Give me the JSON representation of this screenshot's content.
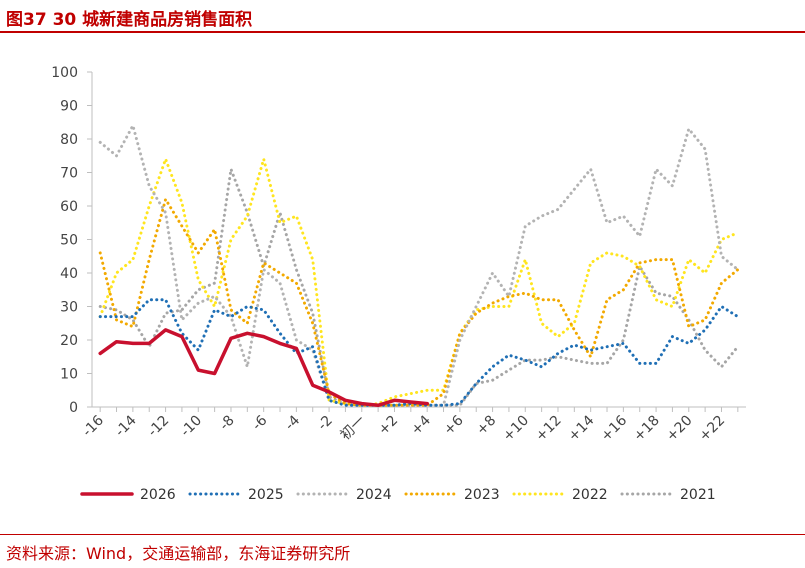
{
  "header": {
    "title": "图37  30 城新建商品房销售面积"
  },
  "footer": {
    "source": "资料来源：Wind，交通运输部，东海证券研究所"
  },
  "colors": {
    "2026": "#c8102e",
    "2025": "#1f6fb5",
    "2024": "#b3b3b3",
    "2023": "#f2a900",
    "2022": "#ffe51f",
    "2021": "#a6a6a6",
    "title": "#c00000"
  },
  "chart_data": {
    "type": "line",
    "title": "30 城新建商品房销售面积",
    "xlabel": "",
    "ylabel": "",
    "ylim": [
      0,
      100
    ],
    "yticks": [
      0,
      10,
      20,
      30,
      40,
      50,
      60,
      70,
      80,
      90,
      100
    ],
    "xlim": [
      -16.5,
      23.5
    ],
    "x": [
      -16,
      -15,
      -14,
      -13,
      -12,
      -11,
      -10,
      -9,
      -8,
      -7,
      -6,
      -5,
      -4,
      -3,
      -2,
      -1,
      0,
      1,
      2,
      3,
      4,
      5,
      6,
      7,
      8,
      9,
      10,
      11,
      12,
      13,
      14,
      15,
      16,
      17,
      18,
      19,
      20,
      21,
      22,
      23
    ],
    "xtick_values": [
      -16,
      -14,
      -12,
      -10,
      -8,
      -6,
      -4,
      -2,
      0,
      2,
      4,
      6,
      8,
      10,
      12,
      14,
      16,
      18,
      20,
      22
    ],
    "xtick_labels": [
      "-16",
      "-14",
      "-12",
      "-10",
      "-8",
      "-6",
      "-4",
      "-2",
      "初一",
      "+2",
      "+4",
      "+6",
      "+8",
      "+10",
      "+12",
      "+14",
      "+16",
      "+18",
      "+20",
      "+22"
    ],
    "legend_position": "bottom",
    "series": [
      {
        "name": "2026",
        "style": "solid",
        "values": [
          16,
          19.5,
          19,
          19,
          23,
          21,
          11,
          10,
          20.5,
          22,
          21,
          19,
          17.5,
          6.5,
          4.5,
          2,
          1,
          0.5,
          2,
          1.5,
          1,
          null,
          null,
          null,
          null,
          null,
          null,
          null,
          null,
          null,
          null,
          null,
          null,
          null,
          null,
          null,
          null,
          null,
          null,
          null
        ]
      },
      {
        "name": "2025",
        "style": "dotted",
        "values": [
          27,
          27,
          27,
          32,
          32,
          22,
          17,
          29,
          27,
          30,
          29,
          22,
          16,
          18,
          2,
          0.5,
          0.5,
          0.5,
          0.5,
          1,
          0.5,
          0.5,
          1,
          7,
          12,
          15.5,
          14,
          12,
          16,
          18.5,
          17,
          18,
          19,
          13,
          13,
          21,
          19,
          23,
          30,
          27
        ]
      },
      {
        "name": "2024",
        "style": "dotted",
        "values": [
          79,
          75,
          84,
          66,
          58,
          26,
          31,
          33,
          27,
          12,
          41,
          37,
          20,
          17,
          2,
          0.5,
          0.5,
          0.5,
          0.5,
          1,
          0.5,
          0.5,
          20,
          30,
          40,
          33,
          54,
          57,
          59,
          65,
          71,
          55,
          57,
          51,
          71,
          66,
          83,
          77,
          45,
          41
        ]
      },
      {
        "name": "2023",
        "style": "dotted",
        "values": [
          46,
          26,
          24,
          44,
          62,
          54,
          46,
          53,
          29,
          25,
          43,
          40,
          37,
          25,
          4,
          1,
          0.5,
          0.5,
          0.5,
          0.5,
          0.5,
          4,
          22,
          28,
          31,
          33,
          34,
          32,
          32,
          23,
          15,
          32,
          35,
          43,
          44,
          44,
          24,
          26,
          37,
          41
        ]
      },
      {
        "name": "2022",
        "style": "dotted",
        "values": [
          27,
          40,
          44,
          60,
          74,
          61,
          38,
          30,
          50,
          57,
          74,
          55,
          57,
          44,
          2,
          1,
          0.5,
          1,
          3,
          4,
          5,
          5,
          22,
          29,
          30,
          30,
          44,
          25,
          21,
          25,
          43,
          46,
          45,
          42,
          32,
          30,
          44,
          40,
          50,
          52
        ]
      },
      {
        "name": "2021",
        "style": "dotted",
        "values": [
          30,
          29,
          26,
          18,
          28,
          29,
          35,
          37,
          71,
          58,
          42,
          58,
          41,
          28,
          3,
          1,
          0.5,
          0.5,
          0.5,
          0.5,
          0.5,
          0.5,
          0.5,
          7,
          8,
          11,
          14,
          14,
          15,
          14,
          13,
          13,
          20,
          42,
          34,
          33,
          26,
          17,
          12,
          18
        ]
      }
    ]
  }
}
